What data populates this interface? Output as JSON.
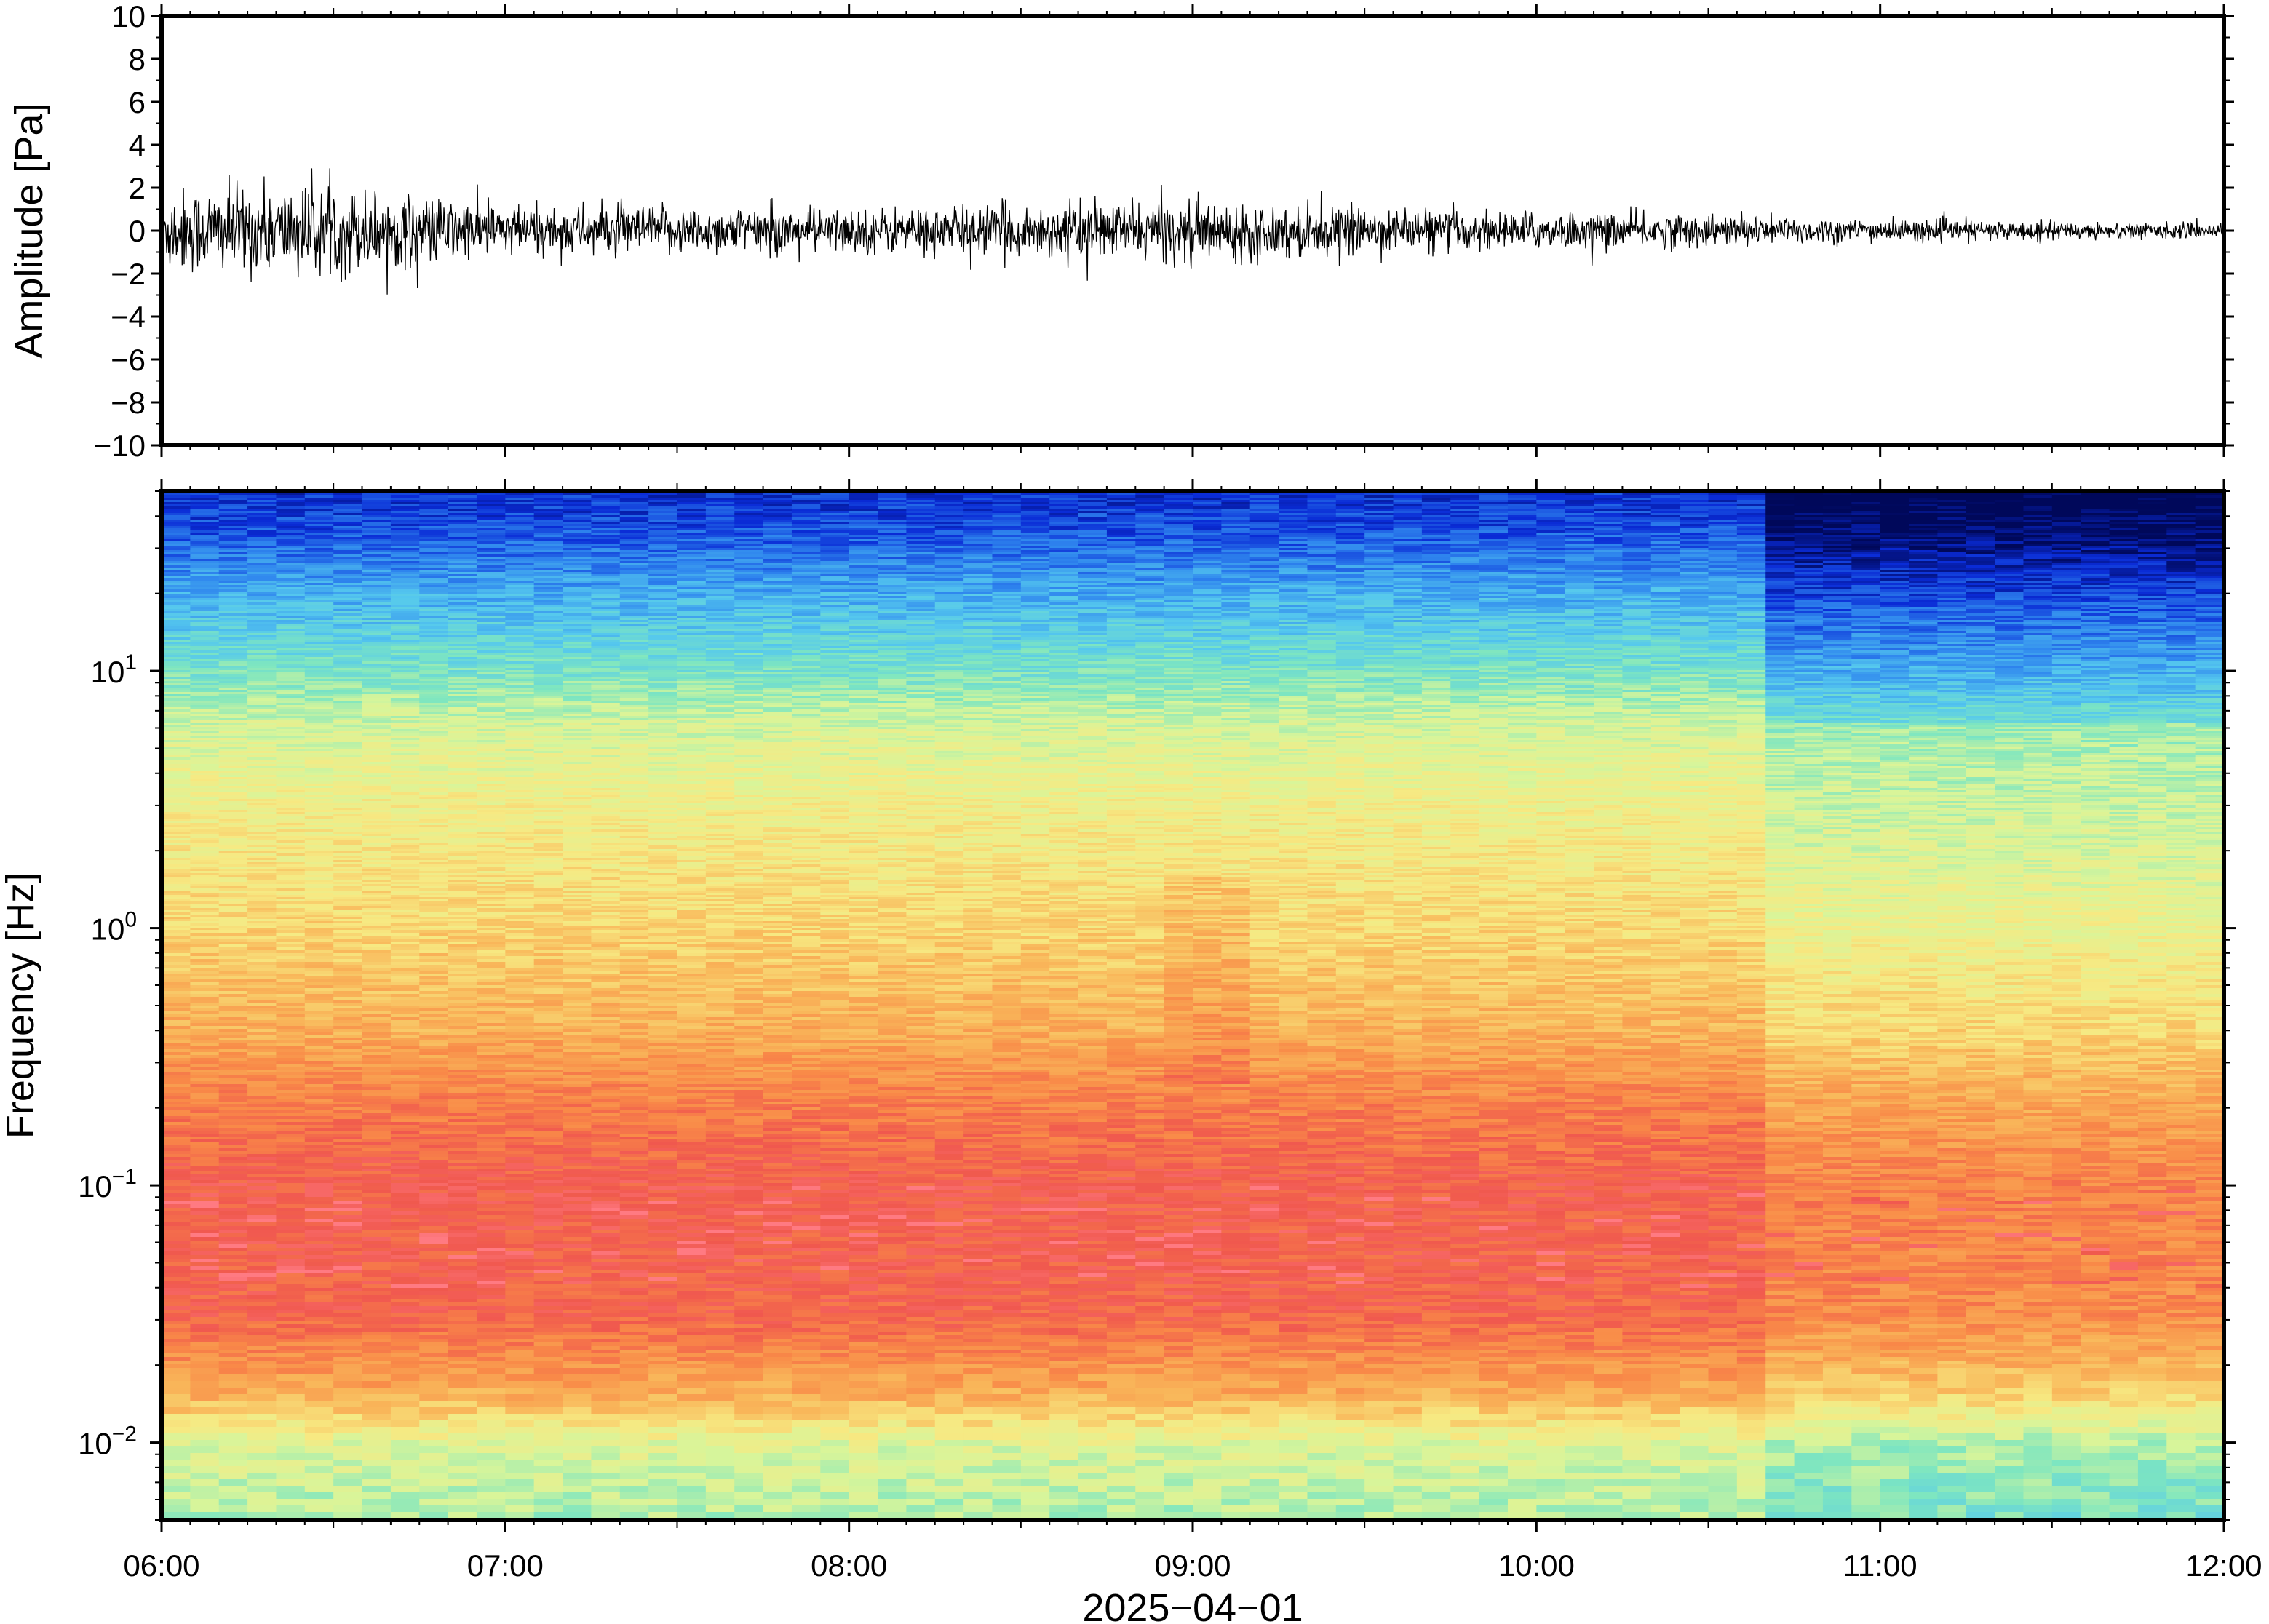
{
  "chart_data": [
    {
      "type": "line",
      "ylabel": "Amplitude [Pa]",
      "ylim": [
        -10,
        10
      ],
      "yticks": [
        {
          "v": 10,
          "label": "10"
        },
        {
          "v": 8,
          "label": "8"
        },
        {
          "v": 6,
          "label": "6"
        },
        {
          "v": 4,
          "label": "4"
        },
        {
          "v": 2,
          "label": "2"
        },
        {
          "v": 0,
          "label": "0"
        },
        {
          "v": -2,
          "label": "−2"
        },
        {
          "v": -4,
          "label": "−4"
        },
        {
          "v": -6,
          "label": "−6"
        },
        {
          "v": -8,
          "label": "−8"
        },
        {
          "v": -10,
          "label": "−10"
        }
      ],
      "xlim": [
        "06:00",
        "12:00"
      ],
      "series": [
        {
          "envelope_x": [
            "06:00",
            "06:30",
            "07:00",
            "07:30",
            "08:00",
            "08:30",
            "09:00",
            "09:30",
            "10:00",
            "10:30",
            "11:00",
            "11:30",
            "12:00"
          ],
          "envelope_amplitude": [
            2.3,
            2.4,
            1.4,
            1.3,
            1.2,
            1.4,
            1.6,
            1.2,
            1.0,
            0.9,
            0.6,
            0.5,
            0.4
          ],
          "peak_max": 2.9,
          "peak_min": -3.2,
          "color": "#000000"
        }
      ]
    },
    {
      "type": "heatmap",
      "ylabel": "Frequency [Hz]",
      "yscale": "log",
      "ylim": [
        0.005,
        50
      ],
      "yticks": [
        {
          "v": 10,
          "base": "10",
          "exp": "1"
        },
        {
          "v": 1,
          "base": "10",
          "exp": "0"
        },
        {
          "v": 0.1,
          "base": "10",
          "exp": "−1"
        },
        {
          "v": 0.01,
          "base": "10",
          "exp": "−2"
        }
      ],
      "xlabel": "2025−04−01",
      "xticks": [
        "06:00",
        "07:00",
        "08:00",
        "09:00",
        "10:00",
        "11:00",
        "12:00"
      ],
      "colormap": [
        "#00085a",
        "#0a2bd6",
        "#2f86ee",
        "#55c8ee",
        "#7ee6c0",
        "#d8f59a",
        "#f7e982",
        "#f9b75a",
        "#f98a48",
        "#f0584e",
        "#ff7a82"
      ],
      "grid": false
    }
  ]
}
